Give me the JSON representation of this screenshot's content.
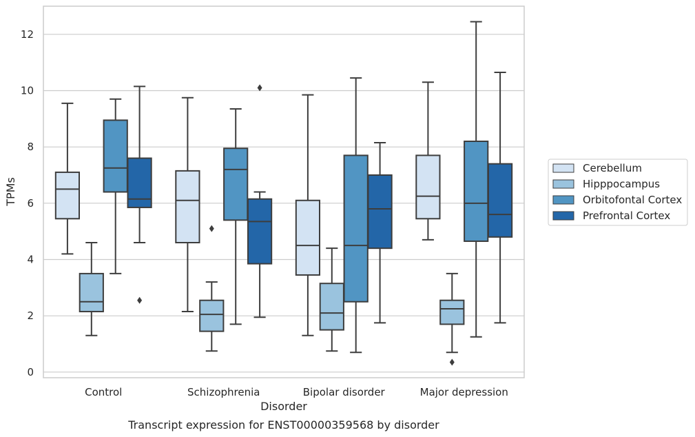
{
  "chart_data": {
    "type": "box",
    "title": "",
    "caption": "Transcript expression for ENST00000359568 by disorder",
    "xlabel": "Disorder",
    "ylabel": "TPMs",
    "ylim": [
      -0.2,
      13.0
    ],
    "yticks": [
      "0",
      "2",
      "4",
      "6",
      "8",
      "10",
      "12"
    ],
    "grid": true,
    "legend_position": "right",
    "categories": [
      "Control",
      "Schizophrenia",
      "Bipolar disorder",
      "Major depression"
    ],
    "series": [
      {
        "name": "Cerebellum",
        "color": "#d3e3f3",
        "boxes": [
          {
            "whisker_low": 4.2,
            "q1": 5.45,
            "median": 6.5,
            "q3": 7.1,
            "whisker_high": 9.55,
            "outliers": []
          },
          {
            "whisker_low": 2.15,
            "q1": 4.6,
            "median": 6.1,
            "q3": 7.15,
            "whisker_high": 9.75,
            "outliers": []
          },
          {
            "whisker_low": 1.3,
            "q1": 3.45,
            "median": 4.5,
            "q3": 6.1,
            "whisker_high": 9.85,
            "outliers": []
          },
          {
            "whisker_low": 4.7,
            "q1": 5.45,
            "median": 6.25,
            "q3": 7.7,
            "whisker_high": 10.3,
            "outliers": []
          }
        ]
      },
      {
        "name": "Hipppocampus",
        "color": "#9ac3de",
        "boxes": [
          {
            "whisker_low": 1.3,
            "q1": 2.15,
            "median": 2.5,
            "q3": 3.5,
            "whisker_high": 4.6,
            "outliers": []
          },
          {
            "whisker_low": 0.75,
            "q1": 1.45,
            "median": 2.05,
            "q3": 2.55,
            "whisker_high": 3.2,
            "outliers": [
              5.1
            ]
          },
          {
            "whisker_low": 0.75,
            "q1": 1.5,
            "median": 2.1,
            "q3": 3.15,
            "whisker_high": 4.4,
            "outliers": []
          },
          {
            "whisker_low": 0.7,
            "q1": 1.7,
            "median": 2.25,
            "q3": 2.55,
            "whisker_high": 3.5,
            "outliers": [
              0.35
            ]
          }
        ]
      },
      {
        "name": "Orbitofontal Cortex",
        "color": "#5195c3",
        "boxes": [
          {
            "whisker_low": 3.5,
            "q1": 6.4,
            "median": 7.25,
            "q3": 8.95,
            "whisker_high": 9.7,
            "outliers": []
          },
          {
            "whisker_low": 1.7,
            "q1": 5.4,
            "median": 7.2,
            "q3": 7.95,
            "whisker_high": 9.35,
            "outliers": []
          },
          {
            "whisker_low": 0.7,
            "q1": 2.5,
            "median": 4.5,
            "q3": 7.7,
            "whisker_high": 10.45,
            "outliers": []
          },
          {
            "whisker_low": 1.25,
            "q1": 4.65,
            "median": 6.0,
            "q3": 8.2,
            "whisker_high": 12.45,
            "outliers": []
          }
        ]
      },
      {
        "name": "Prefrontal Cortex",
        "color": "#2366a8",
        "boxes": [
          {
            "whisker_low": 4.6,
            "q1": 5.85,
            "median": 6.15,
            "q3": 7.6,
            "whisker_high": 10.15,
            "outliers": [
              2.55
            ]
          },
          {
            "whisker_low": 1.95,
            "q1": 3.85,
            "median": 5.35,
            "q3": 6.15,
            "whisker_high": 6.4,
            "outliers": [
              10.1
            ]
          },
          {
            "whisker_low": 1.75,
            "q1": 4.4,
            "median": 5.8,
            "q3": 7.0,
            "whisker_high": 8.15,
            "outliers": []
          },
          {
            "whisker_low": 1.75,
            "q1": 4.8,
            "median": 5.6,
            "q3": 7.4,
            "whisker_high": 10.65,
            "outliers": []
          }
        ]
      }
    ]
  }
}
